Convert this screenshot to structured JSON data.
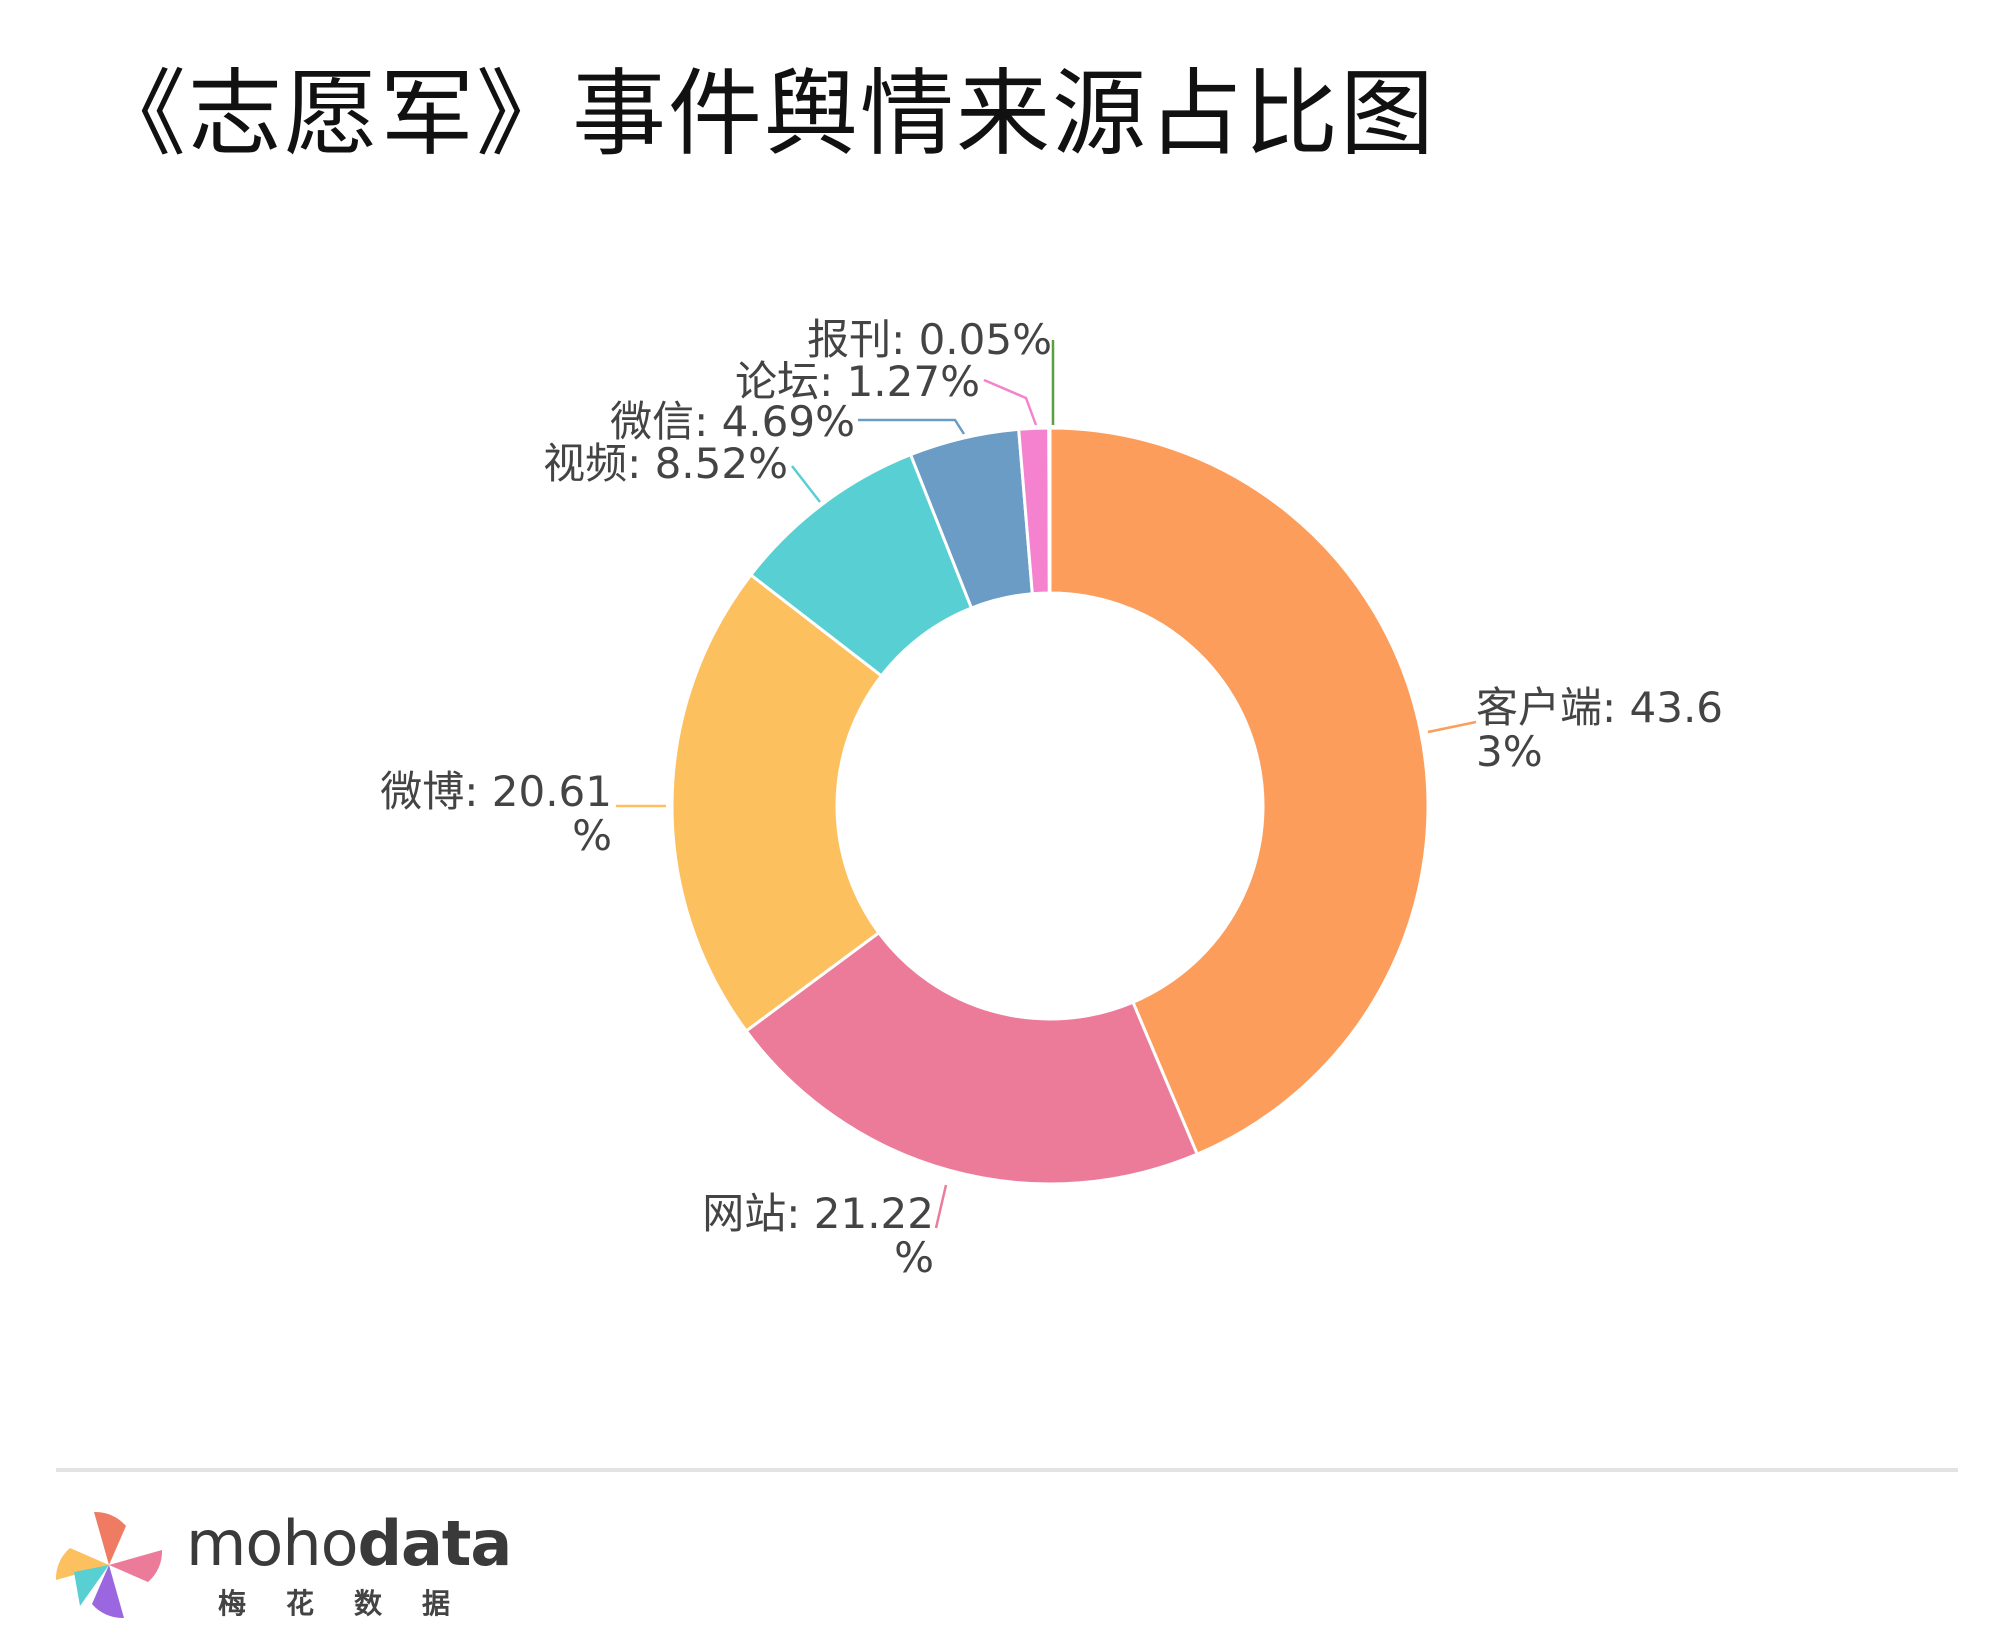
{
  "chart_data": {
    "type": "pie",
    "title": "《志愿军》事件舆情来源占比图",
    "label_separator": ": ",
    "slices": [
      {
        "name": "客户端",
        "value": 43.63,
        "display": "43.63%",
        "color": "#fc9d5c"
      },
      {
        "name": "网站",
        "value": 21.22,
        "display": "21.22%",
        "color": "#ec7b99"
      },
      {
        "name": "微博",
        "value": 20.61,
        "display": "20.61%",
        "color": "#fcc05f"
      },
      {
        "name": "视频",
        "value": 8.52,
        "display": "8.52%",
        "color": "#58cfd2"
      },
      {
        "name": "微信",
        "value": 4.69,
        "display": "4.69%",
        "color": "#6b9cc5"
      },
      {
        "name": "论坛",
        "value": 1.27,
        "display": "1.27%",
        "color": "#f582cf"
      },
      {
        "name": "报刊",
        "value": 0.05,
        "display": "0.05%",
        "color": "#5aa043"
      }
    ]
  },
  "brand": {
    "name_light": "moho",
    "name_bold": "data",
    "subtitle": "梅花数据"
  }
}
